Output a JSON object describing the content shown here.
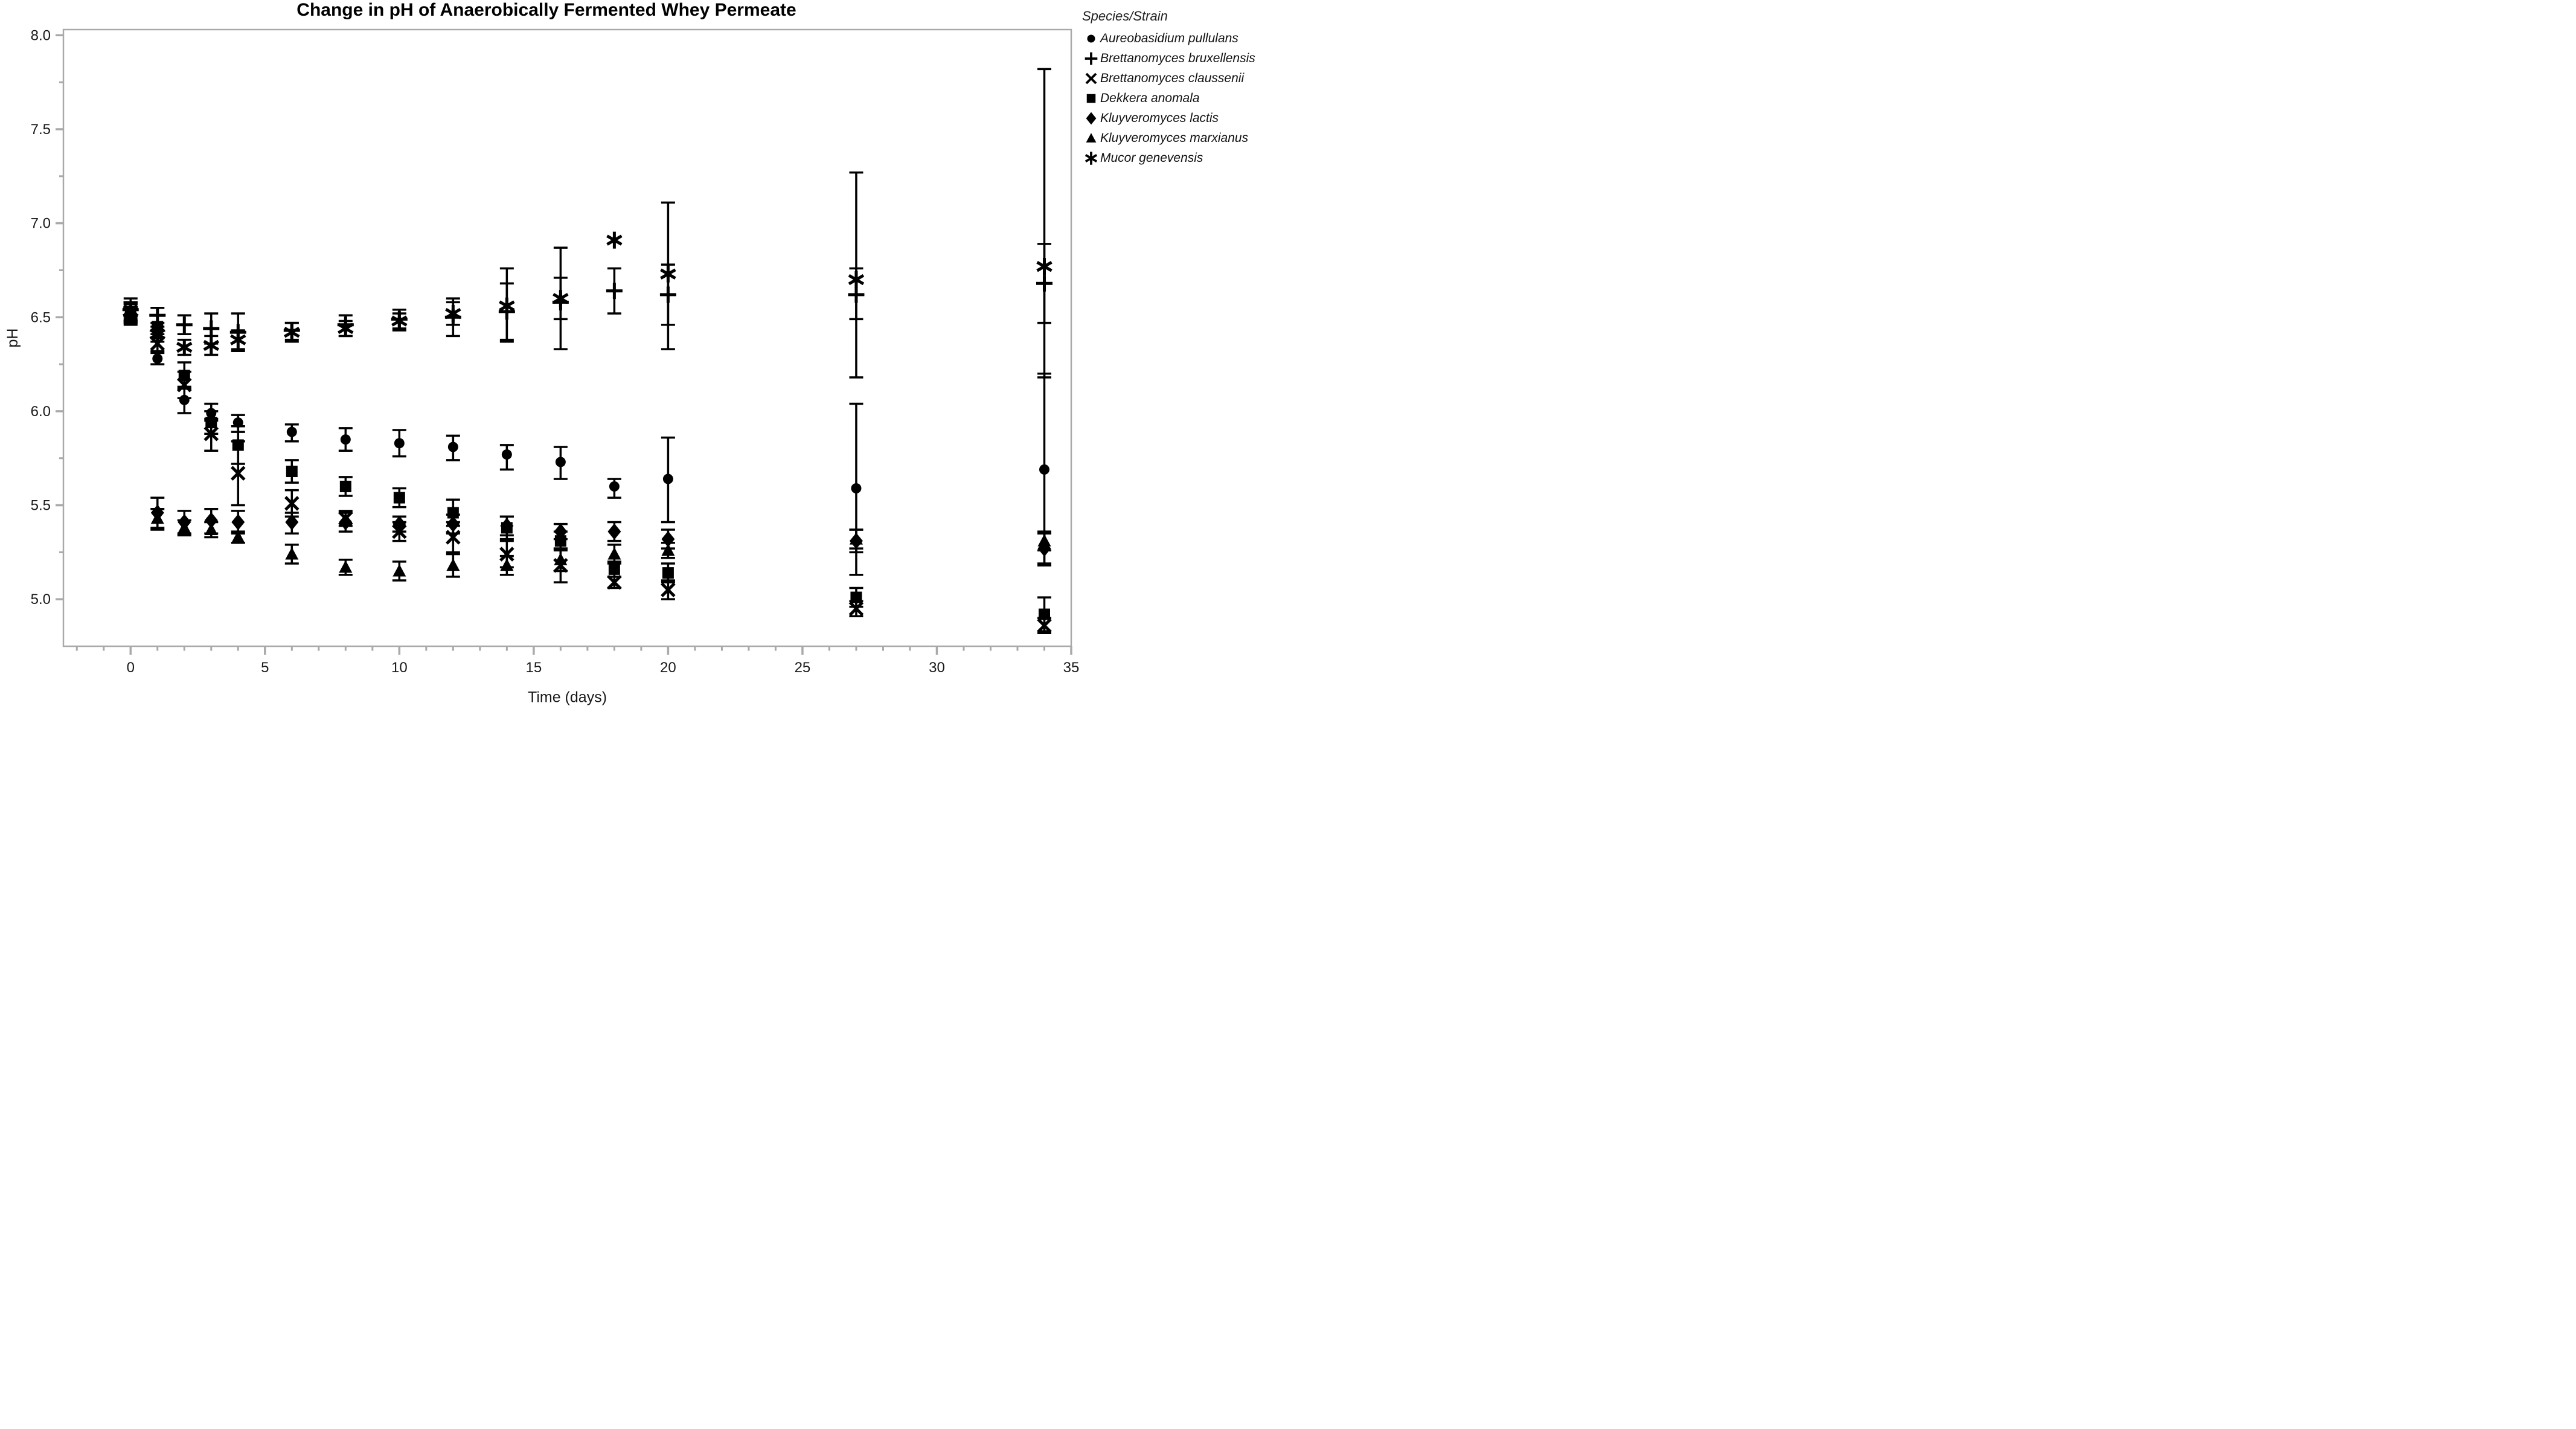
{
  "title": "Change in pH of Anaerobically Fermented Whey Permeate",
  "legend": {
    "title": "Species/Strain"
  },
  "chart_data": {
    "type": "scatter",
    "title": "Change in pH of Anaerobically Fermented Whey Permeate",
    "xlabel": "Time (days)",
    "ylabel": "pH",
    "xlim": [
      -2.5,
      35
    ],
    "ylim": [
      4.75,
      8.03
    ],
    "x_ticks": [
      0,
      5,
      10,
      15,
      20,
      25,
      30,
      35
    ],
    "x_minor_step": 1,
    "y_ticks": [
      "5.0",
      "5.5",
      "6.0",
      "6.5",
      "7.0",
      "7.5",
      "8.0"
    ],
    "y_minor_step": 0.25,
    "grid": false,
    "legend_position": "right",
    "marker_color": "#000000",
    "spine_color": "#a9a9a9",
    "x": [
      0,
      1,
      2,
      3,
      4,
      6,
      8,
      10,
      12,
      14,
      16,
      18,
      20,
      27,
      34
    ],
    "series": [
      {
        "name": "Aureobasidium pullulans",
        "marker": "circle",
        "values": [
          6.52,
          6.28,
          6.06,
          5.99,
          5.94,
          5.89,
          5.85,
          5.83,
          5.81,
          5.77,
          5.73,
          5.6,
          5.64,
          5.59,
          5.69
        ],
        "err_lo": [
          6.46,
          6.25,
          5.99,
          5.95,
          5.89,
          5.84,
          5.79,
          5.76,
          5.74,
          5.69,
          5.64,
          5.54,
          5.41,
          5.13,
          5.18
        ],
        "err_hi": [
          6.58,
          6.32,
          6.13,
          6.04,
          5.98,
          5.93,
          5.91,
          5.9,
          5.87,
          5.82,
          5.81,
          5.64,
          5.86,
          6.04,
          6.2
        ]
      },
      {
        "name": "Brettanomyces bruxellensis",
        "marker": "plus",
        "values": [
          6.54,
          6.51,
          6.46,
          6.44,
          6.42,
          6.43,
          6.46,
          6.49,
          6.5,
          6.53,
          6.58,
          6.64,
          6.62,
          6.62,
          6.68
        ],
        "err_lo": [
          6.49,
          6.47,
          6.41,
          6.36,
          6.32,
          6.38,
          6.4,
          6.43,
          6.4,
          6.38,
          6.33,
          6.52,
          6.46,
          6.49,
          6.47
        ],
        "err_hi": [
          6.6,
          6.55,
          6.51,
          6.52,
          6.52,
          6.47,
          6.51,
          6.54,
          6.6,
          6.68,
          6.87,
          6.76,
          6.78,
          6.76,
          6.89
        ]
      },
      {
        "name": "Brettanomyces claussenii",
        "marker": "x",
        "values": [
          6.53,
          6.36,
          6.14,
          5.88,
          5.67,
          5.51,
          5.43,
          5.36,
          5.33,
          5.24,
          5.18,
          5.09,
          5.05,
          4.95,
          4.86
        ],
        "err_lo": [
          6.48,
          6.31,
          6.07,
          5.79,
          5.5,
          5.44,
          5.39,
          5.31,
          5.25,
          5.17,
          5.09,
          5.06,
          5.0,
          4.91,
          4.82
        ],
        "err_hi": [
          6.58,
          6.41,
          6.21,
          5.96,
          5.84,
          5.58,
          5.47,
          5.41,
          5.41,
          5.31,
          5.27,
          5.12,
          5.1,
          4.99,
          4.9
        ]
      },
      {
        "name": "Dekkera anomala",
        "marker": "square",
        "values": [
          6.53,
          6.45,
          6.19,
          5.94,
          5.82,
          5.68,
          5.6,
          5.54,
          5.46,
          5.38,
          5.31,
          5.16,
          5.14,
          5.01,
          4.92
        ],
        "err_lo": [
          6.48,
          6.39,
          6.12,
          5.88,
          5.72,
          5.62,
          5.55,
          5.49,
          5.39,
          5.32,
          5.26,
          5.12,
          5.09,
          4.96,
          4.83
        ],
        "err_hi": [
          6.58,
          6.51,
          6.26,
          6.0,
          5.92,
          5.74,
          5.65,
          5.59,
          5.53,
          5.44,
          5.36,
          5.2,
          5.19,
          5.06,
          5.01
        ]
      },
      {
        "name": "Kluyveromyces lactis",
        "marker": "diamond",
        "values": [
          6.52,
          5.46,
          5.41,
          5.42,
          5.41,
          5.41,
          5.41,
          5.4,
          5.4,
          5.39,
          5.36,
          5.36,
          5.32,
          5.31,
          5.27
        ],
        "err_lo": [
          6.47,
          5.37,
          5.35,
          5.35,
          5.35,
          5.35,
          5.36,
          5.36,
          5.35,
          5.34,
          5.32,
          5.31,
          5.27,
          5.25,
          5.19
        ],
        "err_hi": [
          6.57,
          5.54,
          5.47,
          5.48,
          5.47,
          5.46,
          5.46,
          5.44,
          5.45,
          5.44,
          5.4,
          5.41,
          5.37,
          5.37,
          5.35
        ]
      },
      {
        "name": "Kluyveromyces marxianus",
        "marker": "triangle",
        "values": [
          6.52,
          5.43,
          5.38,
          5.37,
          5.33,
          5.24,
          5.17,
          5.15,
          5.18,
          5.18,
          5.21,
          5.24,
          5.26,
          5.32,
          5.31
        ],
        "err_lo": [
          6.47,
          5.38,
          5.34,
          5.33,
          5.3,
          5.19,
          5.13,
          5.1,
          5.12,
          5.13,
          5.15,
          5.19,
          5.22,
          5.27,
          5.26
        ],
        "err_hi": [
          6.57,
          5.48,
          5.42,
          5.41,
          5.36,
          5.29,
          5.21,
          5.2,
          5.24,
          5.23,
          5.27,
          5.29,
          5.3,
          5.37,
          5.36
        ]
      },
      {
        "name": "Mucor genevensis",
        "marker": "asterisk",
        "values": [
          6.53,
          6.41,
          6.34,
          6.35,
          6.38,
          6.42,
          6.44,
          6.48,
          6.52,
          6.56,
          6.6,
          6.91,
          6.73,
          6.7,
          6.77
        ],
        "err_lo": [
          6.48,
          6.37,
          6.3,
          6.3,
          6.33,
          6.37,
          6.4,
          6.44,
          6.46,
          6.37,
          6.49,
          6.91,
          6.33,
          6.18,
          6.18
        ],
        "err_hi": [
          6.58,
          6.45,
          6.38,
          6.4,
          6.43,
          6.47,
          6.48,
          6.52,
          6.58,
          6.76,
          6.71,
          6.91,
          7.11,
          7.27,
          7.82
        ]
      }
    ]
  }
}
